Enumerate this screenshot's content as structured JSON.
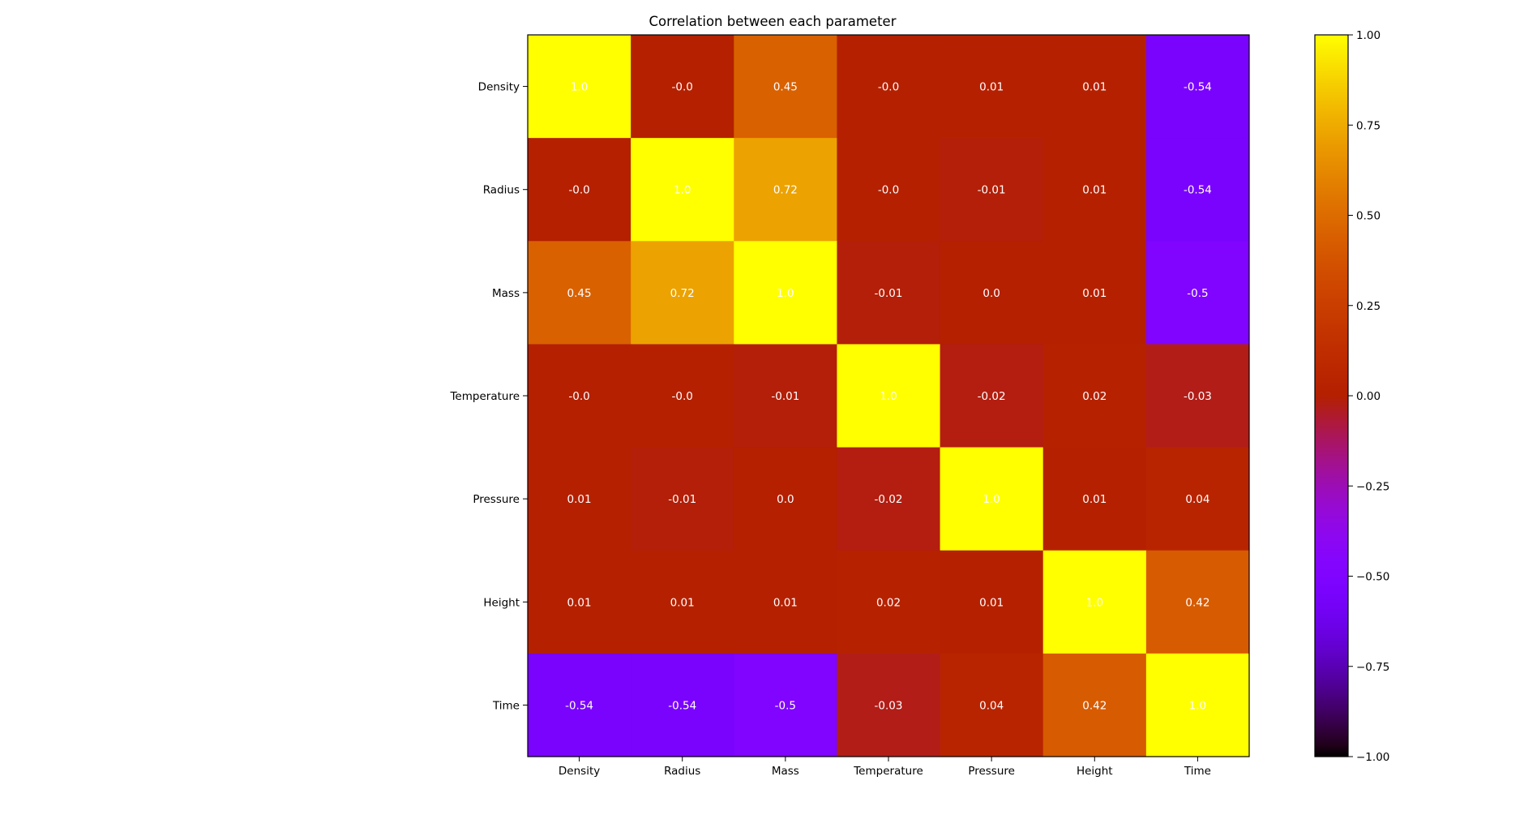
{
  "chart_data": {
    "type": "heatmap",
    "title": "Correlation between each parameter",
    "xlabel": "",
    "ylabel": "",
    "x_categories": [
      "Density",
      "Radius",
      "Mass",
      "Temperature",
      "Pressure",
      "Height",
      "Time"
    ],
    "y_categories": [
      "Density",
      "Radius",
      "Mass",
      "Temperature",
      "Pressure",
      "Height",
      "Time"
    ],
    "values": [
      [
        1.0,
        -0.0,
        0.45,
        -0.0,
        0.01,
        0.01,
        -0.54
      ],
      [
        -0.0,
        1.0,
        0.72,
        -0.0,
        -0.01,
        0.01,
        -0.54
      ],
      [
        0.45,
        0.72,
        1.0,
        -0.01,
        0.0,
        0.01,
        -0.5
      ],
      [
        -0.0,
        -0.0,
        -0.01,
        1.0,
        -0.02,
        0.02,
        -0.03
      ],
      [
        0.01,
        -0.01,
        0.0,
        -0.02,
        1.0,
        0.01,
        0.04
      ],
      [
        0.01,
        0.01,
        0.01,
        0.02,
        0.01,
        1.0,
        0.42
      ],
      [
        -0.54,
        -0.54,
        -0.5,
        -0.03,
        0.04,
        0.42,
        1.0
      ]
    ],
    "cell_labels": [
      [
        "1.0",
        "-0.0",
        "0.45",
        "-0.0",
        "0.01",
        "0.01",
        "-0.54"
      ],
      [
        "-0.0",
        "1.0",
        "0.72",
        "-0.0",
        "-0.01",
        "0.01",
        "-0.54"
      ],
      [
        "0.45",
        "0.72",
        "1.0",
        "-0.01",
        "0.0",
        "0.01",
        "-0.5"
      ],
      [
        "-0.0",
        "-0.0",
        "-0.01",
        "1.0",
        "-0.02",
        "0.02",
        "-0.03"
      ],
      [
        "0.01",
        "-0.01",
        "0.0",
        "-0.02",
        "1.0",
        "0.01",
        "0.04"
      ],
      [
        "0.01",
        "0.01",
        "0.01",
        "0.02",
        "0.01",
        "1.0",
        "0.42"
      ],
      [
        "-0.54",
        "-0.54",
        "-0.5",
        "-0.03",
        "0.04",
        "0.42",
        "1.0"
      ]
    ],
    "colormap": "gnuplot",
    "vmin": -1.0,
    "vmax": 1.0,
    "colorbar": {
      "ticks": [
        1.0,
        0.75,
        0.5,
        0.25,
        0.0,
        -0.25,
        -0.5,
        -0.75,
        -1.0
      ],
      "tick_labels": [
        "1.00",
        "0.75",
        "0.50",
        "0.25",
        "0.00",
        "−0.25",
        "−0.50",
        "−0.75",
        "−1.00"
      ]
    },
    "grid": false,
    "legend": "colorbar-right",
    "colors": {
      "cell_text": "#ffffff",
      "axis": "#000000",
      "background": "#ffffff"
    }
  }
}
